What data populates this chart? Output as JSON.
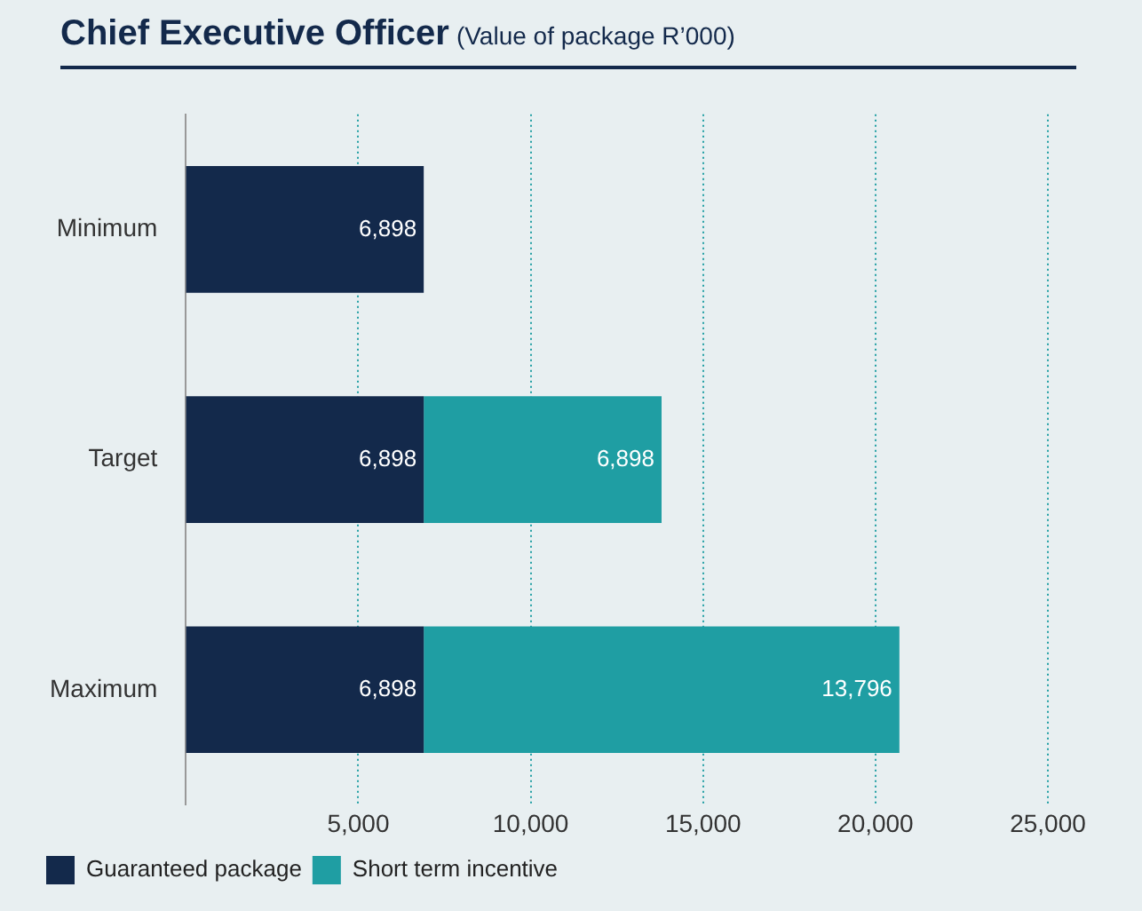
{
  "chart_data": {
    "type": "bar",
    "title": "Chief Executive Officer",
    "subtitle": "(Value of package R’000)",
    "orientation": "horizontal",
    "stacked": true,
    "categories": [
      "Minimum",
      "Target",
      "Maximum"
    ],
    "series": [
      {
        "name": "Guaranteed package",
        "color": "#13294b",
        "values": [
          6898,
          6898,
          6898
        ],
        "value_labels": [
          "6,898",
          "6,898",
          "6,898"
        ]
      },
      {
        "name": "Short term incentive",
        "color": "#1f9ea3",
        "values": [
          null,
          6898,
          13796
        ],
        "value_labels": [
          null,
          "6,898",
          "13,796"
        ]
      }
    ],
    "xlim": [
      0,
      25000
    ],
    "xticks": [
      {
        "value": 5000,
        "label": "5,000"
      },
      {
        "value": 10000,
        "label": "10,000"
      },
      {
        "value": 15000,
        "label": "15,000"
      },
      {
        "value": 20000,
        "label": "20,000"
      },
      {
        "value": 25000,
        "label": "25,000"
      }
    ],
    "grid": "x",
    "legend": "bottom left"
  }
}
